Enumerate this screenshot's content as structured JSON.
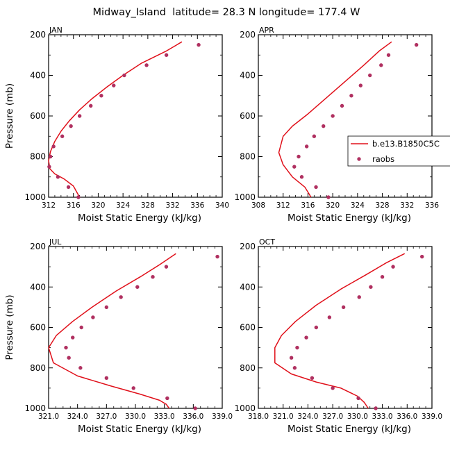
{
  "title": "Midway_Island  latitude= 28.3 N longitude= 177.4 W",
  "colors": {
    "model": "#e0101a",
    "obs": "#b03060"
  },
  "legend": {
    "model_label": "b.e13.B1850C5C",
    "obs_label": "raobs"
  },
  "chart_data": [
    {
      "type": "line",
      "panel_label": "JAN",
      "xlabel": "Moist Static Energy (kJ/kg)",
      "ylabel": "Pressure (mb)",
      "xlim": [
        312,
        340
      ],
      "ylim": [
        1000,
        200
      ],
      "xticks": [
        "312",
        "316",
        "320",
        "324",
        "328",
        "332",
        "336",
        "340"
      ],
      "yticks": [
        "200",
        "400",
        "600",
        "800",
        "1000"
      ],
      "series": [
        {
          "name": "b.e13.B1850C5C",
          "style": "line",
          "x": [
            333.5,
            331.0,
            327.0,
            324.0,
            321.5,
            319.0,
            317.0,
            315.3,
            314.0,
            313.0,
            312.3,
            312.0,
            312.2,
            313.0,
            314.5,
            316.0,
            317.0
          ],
          "y": [
            235,
            280,
            340,
            400,
            455,
            515,
            570,
            625,
            675,
            725,
            775,
            820,
            860,
            885,
            910,
            945,
            1000
          ]
        },
        {
          "name": "raobs",
          "style": "markers",
          "x": [
            336.2,
            331.0,
            327.8,
            324.2,
            322.5,
            320.5,
            318.8,
            317.0,
            315.6,
            314.2,
            312.8,
            312.3,
            312.1,
            313.5,
            315.2,
            316.8
          ],
          "y": [
            250,
            300,
            350,
            400,
            450,
            500,
            550,
            600,
            650,
            700,
            750,
            800,
            850,
            900,
            950,
            1000
          ]
        }
      ]
    },
    {
      "type": "line",
      "panel_label": "APR",
      "xlabel": "Moist Static Energy (kJ/kg)",
      "ylabel": "",
      "xlim": [
        308,
        336
      ],
      "ylim": [
        1000,
        200
      ],
      "xticks": [
        "308",
        "312",
        "316",
        "320",
        "324",
        "328",
        "332",
        "336"
      ],
      "yticks": [
        "200",
        "400",
        "600",
        "800",
        "1000"
      ],
      "series": [
        {
          "name": "b.e13.B1850C5C",
          "style": "line",
          "x": [
            329.5,
            327.5,
            325.0,
            322.0,
            319.0,
            316.0,
            313.5,
            312.0,
            311.3,
            312.0,
            313.5,
            315.5,
            316.5
          ],
          "y": [
            235,
            280,
            350,
            430,
            510,
            590,
            650,
            700,
            780,
            840,
            900,
            950,
            1000
          ]
        },
        {
          "name": "raobs",
          "style": "markers",
          "x": [
            333.5,
            329.0,
            327.8,
            326.0,
            324.5,
            323.0,
            321.5,
            320.0,
            318.5,
            317.0,
            315.8,
            314.5,
            313.8,
            315.0,
            317.3,
            319.3
          ],
          "y": [
            250,
            300,
            350,
            400,
            450,
            500,
            550,
            600,
            650,
            700,
            750,
            800,
            850,
            900,
            950,
            1000
          ]
        }
      ]
    },
    {
      "type": "line",
      "panel_label": "JUL",
      "xlabel": "Moist Static Energy (kJ/kg)",
      "ylabel": "Pressure (mb)",
      "xlim": [
        321,
        339
      ],
      "ylim": [
        1000,
        200
      ],
      "xticks": [
        "321.0",
        "324.0",
        "327.0",
        "330.0",
        "333.0",
        "336.0",
        "339.0"
      ],
      "yticks": [
        "200",
        "400",
        "600",
        "800",
        "1000"
      ],
      "series": [
        {
          "name": "b.e13.B1850C5C",
          "style": "line",
          "x": [
            334.2,
            332.5,
            330.5,
            328.0,
            325.5,
            323.5,
            321.8,
            321.0,
            321.5,
            324.0,
            327.5,
            330.5,
            332.5,
            333.2,
            333.5
          ],
          "y": [
            235,
            290,
            350,
            420,
            500,
            570,
            640,
            700,
            775,
            840,
            890,
            930,
            960,
            980,
            1000
          ]
        },
        {
          "name": "raobs",
          "style": "markers",
          "x": [
            338.5,
            333.2,
            331.8,
            330.2,
            328.5,
            327.0,
            325.6,
            324.4,
            323.5,
            322.8,
            323.1,
            324.3,
            327.0,
            329.8,
            333.3,
            336.2
          ],
          "y": [
            250,
            300,
            350,
            400,
            450,
            500,
            550,
            600,
            650,
            700,
            750,
            800,
            850,
            900,
            950,
            1000
          ]
        }
      ]
    },
    {
      "type": "line",
      "panel_label": "OCT",
      "xlabel": "Moist Static Energy (kJ/kg)",
      "ylabel": "",
      "xlim": [
        318,
        339
      ],
      "ylim": [
        1000,
        200
      ],
      "xticks": [
        "318.0",
        "321.0",
        "324.0",
        "327.0",
        "330.0",
        "333.0",
        "336.0",
        "339.0"
      ],
      "yticks": [
        "200",
        "400",
        "600",
        "800",
        "1000"
      ],
      "series": [
        {
          "name": "b.e13.B1850C5C",
          "style": "line",
          "x": [
            335.7,
            333.5,
            331.0,
            328.0,
            325.0,
            322.5,
            320.8,
            320.0,
            320.0,
            322.0,
            325.0,
            328.0,
            330.0,
            330.8,
            331.3
          ],
          "y": [
            235,
            280,
            340,
            410,
            490,
            570,
            640,
            700,
            775,
            830,
            870,
            900,
            940,
            970,
            1000
          ]
        },
        {
          "name": "raobs",
          "style": "markers",
          "x": [
            337.8,
            334.3,
            333.0,
            331.6,
            330.2,
            328.3,
            326.6,
            325.0,
            323.8,
            322.7,
            322.0,
            322.4,
            324.5,
            327.0,
            330.1,
            332.2
          ],
          "y": [
            250,
            300,
            350,
            400,
            450,
            500,
            550,
            600,
            650,
            700,
            750,
            800,
            850,
            900,
            950,
            1000
          ]
        }
      ]
    }
  ]
}
